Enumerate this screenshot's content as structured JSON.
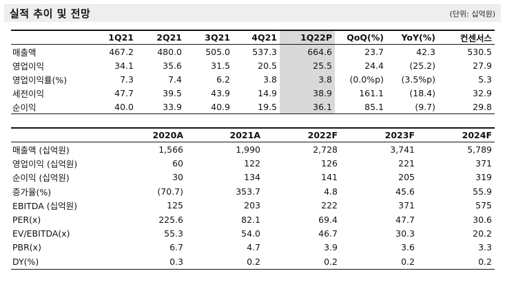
{
  "header": {
    "title": "실적 추이 및 전망",
    "unit": "(단위: 십억원)"
  },
  "quarterly": {
    "columns": [
      "",
      "1Q21",
      "2Q21",
      "3Q21",
      "4Q21",
      "1Q22P",
      "QoQ(%)",
      "YoY(%)",
      "컨센서스"
    ],
    "rows": [
      {
        "label": "매출액",
        "values": [
          "467.2",
          "480.0",
          "505.0",
          "537.3",
          "664.6",
          "23.7",
          "42.3",
          "530.5"
        ]
      },
      {
        "label": "영업이익",
        "values": [
          "34.1",
          "35.6",
          "31.5",
          "20.5",
          "25.5",
          "24.4",
          "(25.2)",
          "27.9"
        ]
      },
      {
        "label": "영업이익률(%)",
        "values": [
          "7.3",
          "7.4",
          "6.2",
          "3.8",
          "3.8",
          "(0.0%p)",
          "(3.5%p)",
          "5.3"
        ]
      },
      {
        "label": "세전이익",
        "values": [
          "47.7",
          "39.5",
          "43.9",
          "14.9",
          "38.9",
          "161.1",
          "(18.4)",
          "32.9"
        ]
      },
      {
        "label": "순이익",
        "values": [
          "40.0",
          "33.9",
          "40.9",
          "19.5",
          "36.1",
          "85.1",
          "(9.7)",
          "29.8"
        ]
      }
    ]
  },
  "annual": {
    "columns": [
      "",
      "2020A",
      "2021A",
      "2022F",
      "2023F",
      "2024F"
    ],
    "rows": [
      {
        "label": "매출액 (십억원)",
        "values": [
          "1,566",
          "1,990",
          "2,728",
          "3,741",
          "5,789"
        ]
      },
      {
        "label": "영업이익 (십억원)",
        "values": [
          "60",
          "122",
          "126",
          "221",
          "371"
        ]
      },
      {
        "label": "순이익 (십억원)",
        "values": [
          "30",
          "134",
          "141",
          "205",
          "319"
        ]
      },
      {
        "label": "증가율(%)",
        "values": [
          "(70.7)",
          "353.7",
          "4.8",
          "45.6",
          "55.9"
        ]
      },
      {
        "label": "EBITDA (십억원)",
        "values": [
          "125",
          "203",
          "222",
          "371",
          "575"
        ]
      },
      {
        "label": "PER(x)",
        "values": [
          "225.6",
          "82.1",
          "69.4",
          "47.7",
          "30.6"
        ]
      },
      {
        "label": "EV/EBITDA(x)",
        "values": [
          "55.3",
          "54.0",
          "46.7",
          "30.3",
          "20.2"
        ]
      },
      {
        "label": "PBR(x)",
        "values": [
          "6.7",
          "4.7",
          "3.9",
          "3.6",
          "3.3"
        ]
      },
      {
        "label": "DY(%)",
        "values": [
          "0.3",
          "0.2",
          "0.2",
          "0.2",
          "0.2"
        ]
      }
    ]
  }
}
